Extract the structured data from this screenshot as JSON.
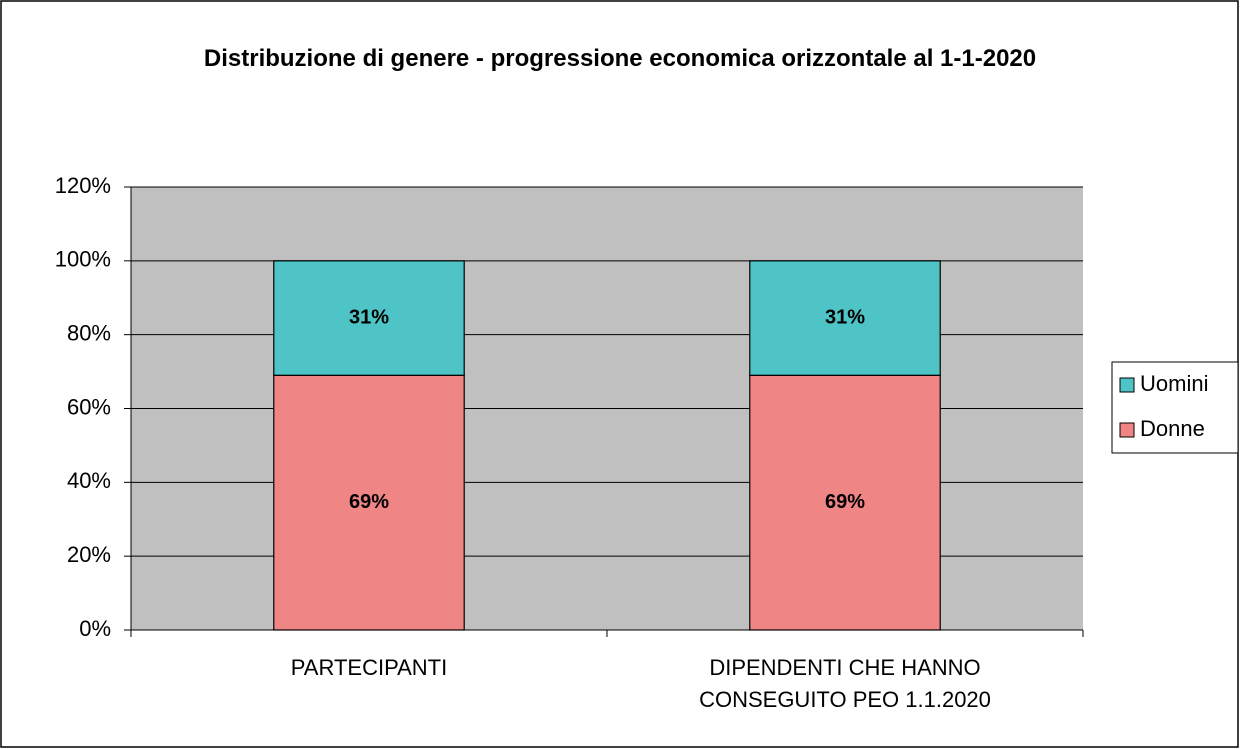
{
  "chart_data": {
    "type": "stacked_bar",
    "title": "Distribuzione di genere - progressione economica orizzontale al 1-1-2020",
    "categories": [
      "PARTECIPANTI",
      "DIPENDENTI CHE HANNO CONSEGUITO PEO 1.1.2020"
    ],
    "series": [
      {
        "name": "Donne",
        "color": "#f08585",
        "values": [
          69,
          69
        ],
        "value_labels": [
          "69%",
          "69%"
        ]
      },
      {
        "name": "Uomini",
        "color": "#4fc4c6",
        "values": [
          31,
          31
        ],
        "value_labels": [
          "31%",
          "31%"
        ]
      }
    ],
    "ylim": [
      0,
      120
    ],
    "yticks": [
      {
        "value": 0,
        "label": "0%"
      },
      {
        "value": 20,
        "label": "20%"
      },
      {
        "value": 40,
        "label": "40%"
      },
      {
        "value": 60,
        "label": "60%"
      },
      {
        "value": 80,
        "label": "80%"
      },
      {
        "value": 100,
        "label": "100%"
      },
      {
        "value": 120,
        "label": "120%"
      }
    ],
    "grid": true,
    "legend": "right",
    "plot_background": "#c0c0c0"
  }
}
